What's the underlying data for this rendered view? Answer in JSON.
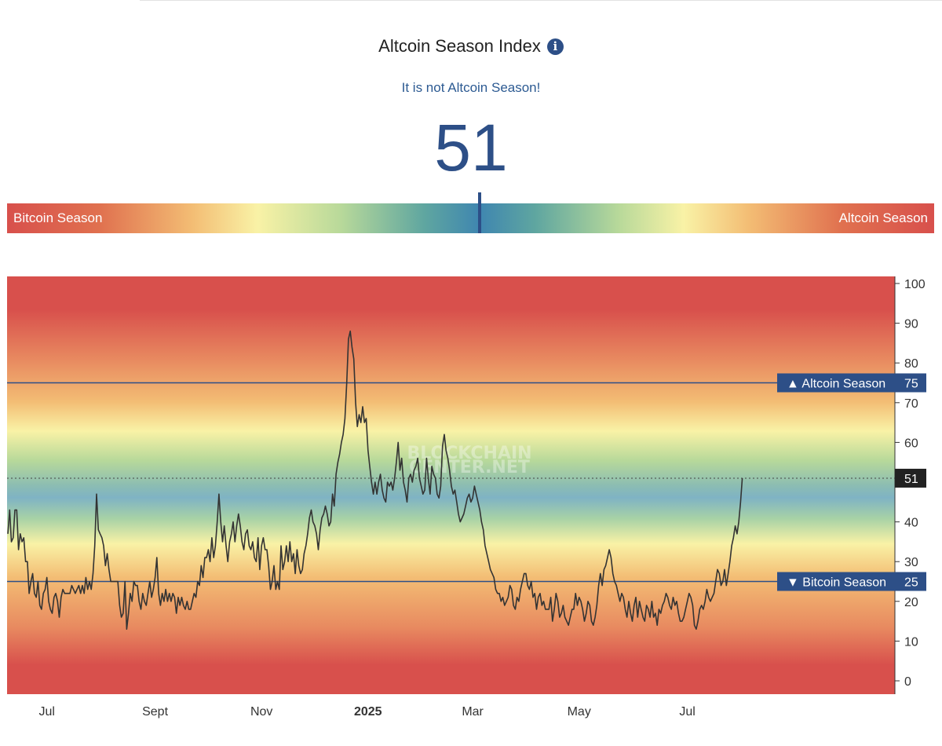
{
  "header": {
    "title": "Altcoin Season Index",
    "info_icon": "info-icon",
    "status": "It is not Altcoin Season!",
    "value": "51"
  },
  "scale": {
    "left_label": "Bitcoin Season",
    "right_label": "Altcoin Season",
    "indicator_value": 51
  },
  "colors": {
    "accent": "#2d4f87",
    "red": "#d8504c",
    "orange": "#f3bd74",
    "yellow": "#f9f2a6",
    "green": "#b8d99a",
    "blue": "#3f86b0"
  },
  "chart_data": {
    "type": "line",
    "title": "",
    "xlabel": "",
    "ylabel": "",
    "ylim": [
      0,
      100
    ],
    "y_ticks": [
      "0",
      "10",
      "20",
      "30",
      "40",
      "50",
      "60",
      "70",
      "80",
      "90",
      "100"
    ],
    "x_ticks": [
      "Jul",
      "Sept",
      "Nov",
      "2025",
      "Mar",
      "May",
      "Jul"
    ],
    "x_tick_index": [
      22,
      83,
      143,
      203,
      262,
      322,
      383
    ],
    "x_range": [
      0,
      500
    ],
    "watermark": [
      "BLOCKCHAIN",
      "CENTER.NET"
    ],
    "thresholds": [
      {
        "label": "▲ Altcoin Season",
        "value": 75,
        "value_label": "75"
      },
      {
        "label": "▼ Bitcoin Season",
        "value": 25,
        "value_label": "25"
      }
    ],
    "current": {
      "value": 51,
      "label": "51"
    },
    "series": [
      {
        "values": [
          37,
          43,
          35,
          36,
          43,
          43,
          33,
          37,
          35,
          36,
          30,
          30,
          22,
          25,
          27,
          22,
          21,
          25,
          19,
          18,
          22,
          23,
          26,
          20,
          18,
          17,
          21,
          22,
          20,
          16,
          21,
          23,
          22,
          22,
          22,
          22,
          24,
          23,
          22,
          23,
          24,
          22,
          24,
          22,
          26,
          23,
          25,
          23,
          27,
          34,
          47,
          38,
          37,
          36,
          34,
          29,
          32,
          28,
          25,
          25,
          25,
          25,
          25,
          19,
          16,
          17,
          25,
          13,
          17,
          22,
          20,
          25,
          24,
          24,
          20,
          18,
          22,
          20,
          19,
          22,
          25,
          21,
          23,
          26,
          31,
          22,
          19,
          22,
          20,
          23,
          20,
          22,
          20,
          22,
          21,
          17,
          21,
          19,
          21,
          19,
          18,
          20,
          18,
          18,
          20,
          22,
          21,
          25,
          24,
          29,
          26,
          31,
          31,
          33,
          30,
          36,
          31,
          34,
          40,
          47,
          40,
          35,
          39,
          34,
          30,
          35,
          37,
          40,
          35,
          39,
          42,
          39,
          35,
          33,
          37,
          38,
          34,
          33,
          35,
          31,
          30,
          36,
          28,
          34,
          36,
          33,
          33,
          29,
          23,
          25,
          29,
          23,
          25,
          23,
          34,
          28,
          30,
          34,
          30,
          35,
          30,
          32,
          27,
          33,
          29,
          27,
          28,
          32,
          34,
          37,
          41,
          43,
          40,
          39,
          37,
          33,
          38,
          41,
          42,
          44,
          42,
          39,
          40,
          47,
          44,
          52,
          55,
          57,
          60,
          62,
          66,
          75,
          86,
          88,
          84,
          81,
          70,
          64,
          67,
          65,
          69,
          65,
          66,
          58,
          54,
          50,
          47,
          50,
          47,
          50,
          52,
          48,
          46,
          45,
          50,
          49,
          50,
          48,
          51,
          55,
          60,
          53,
          56,
          50,
          48,
          45,
          51,
          52,
          50,
          53,
          54,
          56,
          51,
          49,
          47,
          48,
          56,
          51,
          47,
          54,
          52,
          51,
          47,
          46,
          49,
          59,
          62,
          58,
          56,
          53,
          49,
          47,
          48,
          45,
          42,
          40,
          41,
          42,
          44,
          46,
          47,
          45,
          46,
          49,
          47,
          45,
          43,
          40,
          38,
          34,
          32,
          30,
          28,
          27,
          26,
          23,
          22,
          22,
          20,
          21,
          19,
          20,
          21,
          24,
          23,
          19,
          18,
          21,
          20,
          23,
          25,
          27,
          27,
          24,
          23,
          25,
          21,
          22,
          18,
          21,
          22,
          19,
          20,
          18,
          18,
          18,
          21,
          15,
          18,
          22,
          20,
          16,
          17,
          19,
          16,
          15,
          14,
          16,
          18,
          18,
          22,
          19,
          21,
          20,
          18,
          15,
          17,
          20,
          19,
          15,
          14,
          16,
          19,
          24,
          27,
          24,
          28,
          29,
          31,
          33,
          31,
          27,
          25,
          24,
          22,
          20,
          22,
          21,
          18,
          16,
          20,
          17,
          15,
          19,
          21,
          16,
          20,
          18,
          16,
          15,
          19,
          18,
          16,
          20,
          16,
          17,
          14,
          18,
          17,
          19,
          20,
          22,
          21,
          19,
          18,
          21,
          19,
          20,
          17,
          15,
          15,
          16,
          18,
          20,
          22,
          21,
          19,
          14,
          13,
          15,
          18,
          19,
          18,
          20,
          23,
          21,
          20,
          21,
          22,
          25,
          28,
          27,
          24,
          25,
          28,
          24,
          27,
          30,
          34,
          36,
          39,
          37,
          40,
          45,
          51
        ]
      }
    ]
  }
}
